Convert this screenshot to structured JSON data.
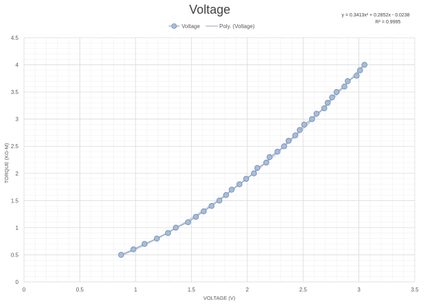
{
  "chart_data": {
    "type": "scatter",
    "title": "Voltage",
    "xlabel": "VOLTAGE (V)",
    "ylabel": "TORQUE (KG-M)",
    "xlim": [
      0,
      3.5
    ],
    "ylim": [
      0,
      4.5
    ],
    "x_ticks": [
      "0",
      "0.5",
      "1",
      "1.5",
      "2",
      "2.5",
      "3",
      "3.5"
    ],
    "y_ticks": [
      "0",
      "0.5",
      "1",
      "1.5",
      "2",
      "2.5",
      "3",
      "3.5",
      "4",
      "4.5"
    ],
    "grid": true,
    "legend_position": "top",
    "legend": [
      "Voltage",
      "Poly. (Voltage)"
    ],
    "trendline": {
      "type": "polynomial",
      "order": 2,
      "coefficients": [
        0.3413,
        0.2852,
        -0.0238
      ],
      "equation": "y = 0.3413x² + 0.2852x - 0.0238",
      "r_squared": "R² = 0.9995"
    },
    "series": [
      {
        "name": "Voltage",
        "color": "#a9bcd6",
        "points": [
          [
            0.87,
            0.5
          ],
          [
            0.98,
            0.6
          ],
          [
            1.08,
            0.7
          ],
          [
            1.19,
            0.8
          ],
          [
            1.29,
            0.9
          ],
          [
            1.36,
            1.0
          ],
          [
            1.47,
            1.1
          ],
          [
            1.54,
            1.2
          ],
          [
            1.61,
            1.3
          ],
          [
            1.68,
            1.4
          ],
          [
            1.75,
            1.5
          ],
          [
            1.81,
            1.6
          ],
          [
            1.86,
            1.7
          ],
          [
            1.93,
            1.8
          ],
          [
            1.99,
            1.9
          ],
          [
            2.06,
            2.0
          ],
          [
            2.09,
            2.1
          ],
          [
            2.17,
            2.2
          ],
          [
            2.2,
            2.3
          ],
          [
            2.27,
            2.4
          ],
          [
            2.33,
            2.5
          ],
          [
            2.37,
            2.6
          ],
          [
            2.43,
            2.7
          ],
          [
            2.47,
            2.8
          ],
          [
            2.51,
            2.9
          ],
          [
            2.58,
            3.0
          ],
          [
            2.62,
            3.1
          ],
          [
            2.69,
            3.2
          ],
          [
            2.72,
            3.3
          ],
          [
            2.76,
            3.4
          ],
          [
            2.8,
            3.5
          ],
          [
            2.87,
            3.6
          ],
          [
            2.9,
            3.7
          ],
          [
            2.98,
            3.8
          ],
          [
            3.01,
            3.9
          ],
          [
            3.05,
            4.0
          ]
        ]
      }
    ]
  }
}
